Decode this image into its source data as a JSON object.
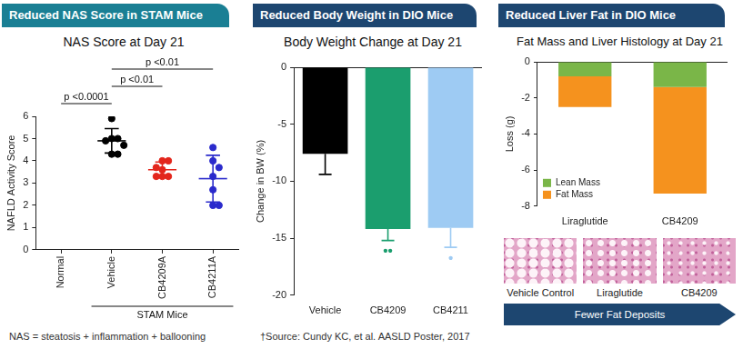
{
  "chart_data": [
    {
      "type": "scatter",
      "header": "Reduced NAS Score in STAM Mice",
      "title": "NAS Score at Day 21",
      "y_label": "NAFLD Activity Score",
      "categories": [
        "Normal",
        "Vehicle",
        "CB4209A",
        "CB4211A"
      ],
      "points": [
        null,
        [
          5.9,
          5.0,
          5.0,
          4.9,
          4.7,
          4.3,
          4.3
        ],
        [
          4.0,
          4.0,
          3.7,
          3.6,
          3.3,
          3.3,
          3.3
        ],
        [
          4.6,
          4.0,
          3.7,
          3.3,
          2.7,
          2.0,
          2.0
        ]
      ],
      "means": [
        null,
        4.9,
        3.6,
        3.2
      ],
      "sd": [
        null,
        0.55,
        0.35,
        1.05
      ],
      "colors": [
        null,
        "#000000",
        "#e3261c",
        "#2b2bcc"
      ],
      "marker": "circle",
      "ylim": [
        0,
        6
      ],
      "yticks": [
        0,
        1,
        2,
        3,
        4,
        5,
        6
      ],
      "grid": false,
      "brackets": [
        {
          "from": "Normal",
          "to": "Vehicle",
          "label": "p <0.0001"
        },
        {
          "from": "Vehicle",
          "to": "CB4209A",
          "label": "p <0.01"
        },
        {
          "from": "Vehicle",
          "to": "CB4211A",
          "label": "p <0.01"
        }
      ],
      "group": {
        "label": "STAM Mice",
        "categories": [
          "Vehicle",
          "CB4209A",
          "CB4211A"
        ]
      },
      "note": "NAS = steatosis + inflammation + ballooning"
    },
    {
      "type": "bar",
      "header": "Reduced Body Weight in DIO Mice",
      "title": "Body Weight Change at Day 21",
      "y_label": "Change in BW (%)",
      "categories": [
        "Vehicle",
        "CB4209",
        "CB4211"
      ],
      "values": [
        -7.6,
        -14.2,
        -14.1
      ],
      "errors": [
        1.8,
        1.0,
        1.7
      ],
      "colors": [
        "#000000",
        "#1b9e6e",
        "#9ecbf3"
      ],
      "ylim": [
        -20,
        0
      ],
      "yticks": [
        -20,
        -15,
        -10,
        -5,
        0
      ],
      "grid": false,
      "annotations": [
        {
          "category": "CB4209",
          "label": "••"
        },
        {
          "category": "CB4211",
          "label": "•"
        }
      ],
      "note": "†Source: Cundy KC, et al. AASLD Poster, 2017"
    },
    {
      "type": "bar",
      "stacked": true,
      "header": "Reduced Liver Fat in DIO Mice",
      "title": "Fat Mass and Liver Histology at Day 21",
      "y_label": "Loss (g)",
      "categories": [
        "Liraglutide",
        "CB4209"
      ],
      "series": [
        {
          "name": "Lean Mass",
          "color": "#7ab648",
          "values": [
            -0.8,
            -1.4
          ]
        },
        {
          "name": "Fat Mass",
          "color": "#f5921e",
          "values": [
            -1.7,
            -5.9
          ]
        }
      ],
      "ylim": [
        -8,
        0
      ],
      "yticks": [
        -8,
        -6,
        -4,
        -2,
        0
      ],
      "grid": false,
      "legend": "bottom left",
      "histology": {
        "labels": [
          "Vehicle Control",
          "Liraglutide",
          "CB4209"
        ],
        "arrow_label": "Fewer Fat Deposits"
      }
    }
  ]
}
